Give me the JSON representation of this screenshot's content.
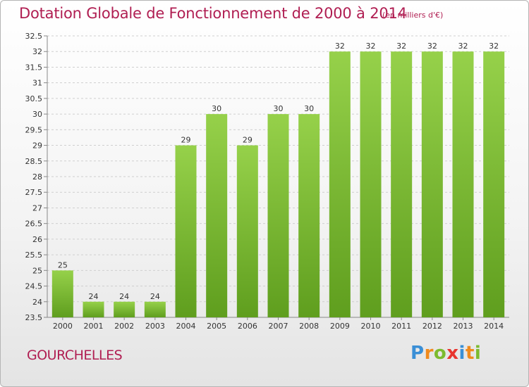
{
  "chart_data": {
    "type": "bar",
    "title": "Dotation Globale de Fonctionnement de 2000 à 2014",
    "subtitle": "(en milliers d'€)",
    "categories": [
      "2000",
      "2001",
      "2002",
      "2003",
      "2004",
      "2005",
      "2006",
      "2007",
      "2008",
      "2009",
      "2010",
      "2011",
      "2012",
      "2013",
      "2014"
    ],
    "values": [
      25,
      24,
      24,
      24,
      29,
      30,
      29,
      30,
      30,
      32,
      32,
      32,
      32,
      32,
      32
    ],
    "ylim": [
      23.5,
      32.5
    ],
    "yticks": [
      "23.5",
      "24",
      "24.5",
      "25",
      "25.5",
      "26",
      "26.5",
      "27",
      "27.5",
      "28",
      "28.5",
      "29",
      "29.5",
      "30",
      "30.5",
      "31",
      "31.5",
      "32",
      "32.5"
    ],
    "grid": true,
    "bar_color": "#7cbb2f",
    "title_color": "#b01e52"
  },
  "commune": "GOURCHELLES",
  "logo": {
    "letters": [
      "P",
      "r",
      "o",
      "x",
      "i",
      "t",
      "i"
    ],
    "colors": [
      "#3a8fd6",
      "#f08a1c",
      "#7cbb2f",
      "#e8352e",
      "#3a8fd6",
      "#f08a1c",
      "#7cbb2f"
    ]
  }
}
